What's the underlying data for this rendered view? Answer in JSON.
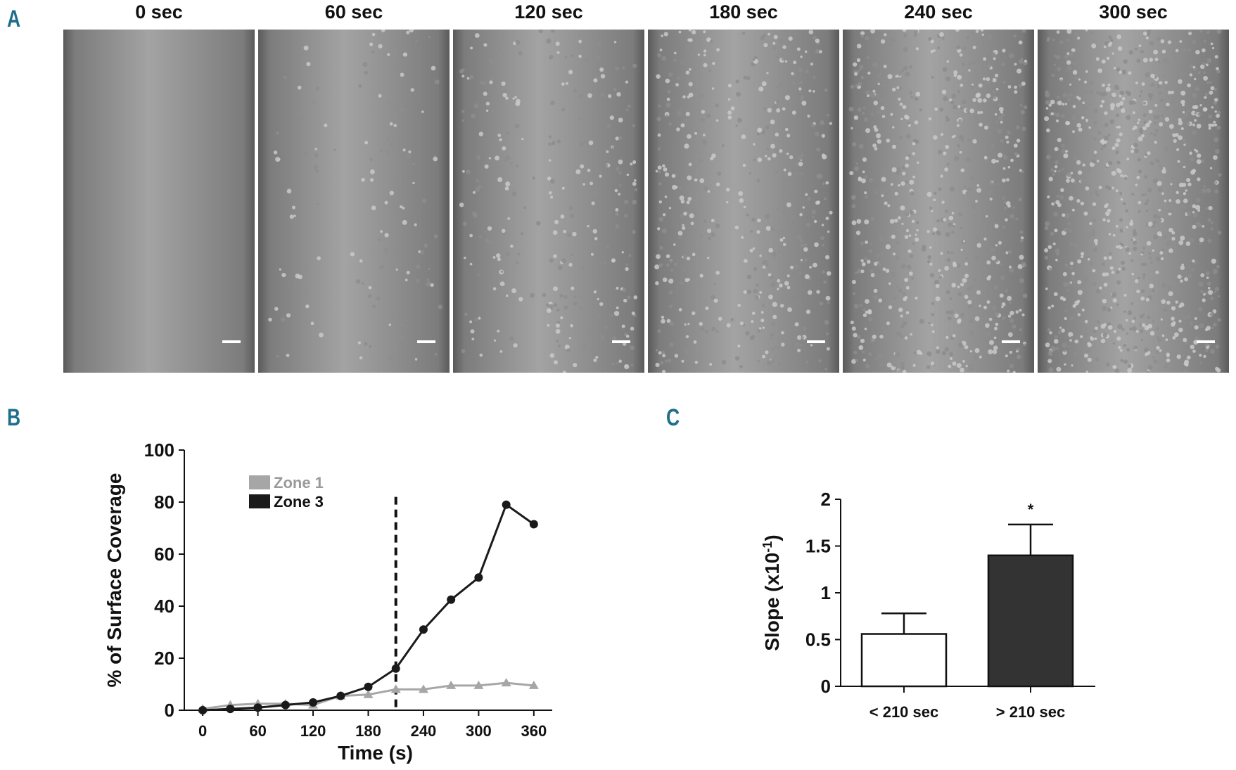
{
  "panels": {
    "a": "A",
    "b": "B",
    "c": "C"
  },
  "panel_a": {
    "frames": [
      {
        "label": "0 sec",
        "density": 0
      },
      {
        "label": "60 sec",
        "density": 0.18
      },
      {
        "label": "120 sec",
        "density": 0.38
      },
      {
        "label": "180 sec",
        "density": 0.58
      },
      {
        "label": "240 sec",
        "density": 0.8
      },
      {
        "label": "300 sec",
        "density": 1.0
      }
    ]
  },
  "chart_data": [
    {
      "type": "line",
      "xlabel": "Time (s)",
      "ylabel": "% of Surface Coverage",
      "xlim": [
        -20,
        380
      ],
      "ylim": [
        0,
        100
      ],
      "xticks": [
        0,
        60,
        120,
        180,
        240,
        300,
        360
      ],
      "yticks": [
        0,
        20,
        40,
        60,
        80,
        100
      ],
      "vline": 210,
      "series": [
        {
          "name": "Zone 1",
          "color": "#a6a6a6",
          "marker": "triangle",
          "x": [
            0,
            30,
            60,
            90,
            120,
            150,
            180,
            210,
            240,
            270,
            300,
            330,
            360
          ],
          "y": [
            0.5,
            2,
            2.5,
            2.5,
            2,
            5.5,
            6,
            8,
            8,
            9.5,
            9.5,
            10.5,
            9.5
          ]
        },
        {
          "name": "Zone 3",
          "color": "#1a1a1a",
          "marker": "circle",
          "x": [
            0,
            30,
            60,
            90,
            120,
            150,
            180,
            210,
            240,
            270,
            300,
            330,
            360
          ],
          "y": [
            0,
            0.5,
            1,
            2,
            3,
            5.5,
            9,
            16,
            31,
            42.5,
            51,
            79,
            71.5
          ]
        }
      ]
    },
    {
      "type": "bar",
      "ylabel": "Slope (x10",
      "ylabel_sup": "-1",
      "ylabel_end": ")",
      "categories": [
        "< 210 sec",
        "> 210 sec"
      ],
      "values": [
        0.56,
        1.4
      ],
      "errors": [
        0.22,
        0.33
      ],
      "colors": [
        "#ffffff",
        "#333333"
      ],
      "ylim": [
        0,
        2
      ],
      "yticks": [
        "0",
        "0.5",
        "1",
        "1.5",
        "2"
      ],
      "annotation": "*"
    }
  ]
}
